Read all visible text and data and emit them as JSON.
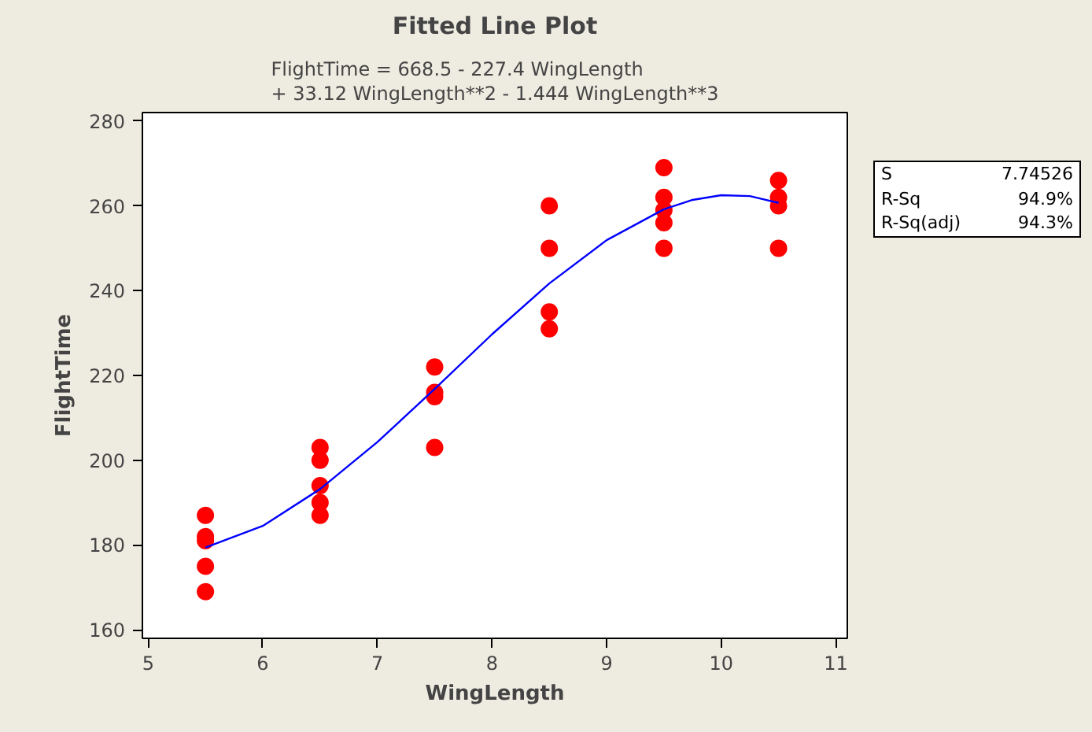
{
  "chart_data": {
    "type": "scatter",
    "title": "Fitted Line Plot",
    "subtitle": "FlightTime =  668.5 - 227.4 WingLength\n+ 33.12 WingLength**2 - 1.444 WingLength**3",
    "xlabel": "WingLength",
    "ylabel": "FlightTime",
    "annotations": [
      "S 7.74526",
      "R-Sq 94.9%",
      "R-Sq(adj) 94.3%"
    ],
    "xlim": [
      4.95,
      11.1
    ],
    "xticks": [
      5,
      6,
      7,
      8,
      9,
      10,
      11
    ],
    "ylim": [
      158,
      282
    ],
    "yticks": [
      160,
      180,
      200,
      220,
      240,
      260,
      280
    ],
    "grid": false,
    "series": [
      {
        "marker": "circle",
        "color": "#ff0000",
        "x": [
          5.5,
          5.5,
          5.5,
          5.5,
          5.5,
          6.5,
          6.5,
          6.5,
          6.5,
          6.5,
          7.5,
          7.5,
          7.5,
          7.5,
          8.5,
          8.5,
          8.5,
          8.5,
          9.5,
          9.5,
          9.5,
          9.5,
          9.5,
          10.5,
          10.5,
          10.5,
          10.5
        ],
        "values": [
          187,
          182,
          181,
          175,
          169,
          203,
          200,
          194,
          190,
          187,
          222,
          216,
          215,
          203,
          260,
          250,
          235,
          231,
          269,
          262,
          259,
          256,
          250,
          266,
          262,
          260,
          250
        ]
      },
      {
        "type": "line",
        "marker": "none",
        "color": "#0000ff",
        "x": [
          5.5,
          6,
          6.5,
          7,
          7.5,
          8,
          8.5,
          9,
          9.5,
          9.75,
          10,
          10.25,
          10.5
        ],
        "values": [
          179.4,
          184.5,
          193.2,
          204.3,
          216.8,
          229.7,
          241.7,
          251.9,
          259.2,
          261.4,
          262.5,
          262.3,
          260.7
        ]
      }
    ]
  }
}
